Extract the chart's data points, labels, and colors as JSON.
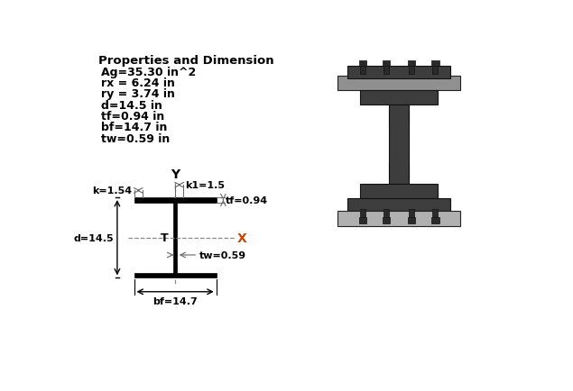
{
  "title": "Properties and Dimension",
  "properties": [
    "Ag=35.30 in^2",
    "rx = 6.24 in",
    "ry = 3.74 in",
    "d=14.5 in",
    "tf=0.94 in",
    "bf=14.7 in",
    "tw=0.59 in"
  ],
  "beam": {
    "d": 14.5,
    "tf": 0.94,
    "bf": 14.7,
    "tw": 0.59,
    "k": 1.54,
    "k1": 1.5
  },
  "colors": {
    "black": "#000000",
    "white": "#ffffff",
    "dim_color": "#666666",
    "text_black": "#000000",
    "orange_x": "#cc4400",
    "dark3d": "#3d3d3d",
    "mid3d": "#5a5a5a",
    "light3d": "#909090",
    "lighter3d": "#b0b0b0",
    "bolt3d": "#2a2a2a"
  }
}
